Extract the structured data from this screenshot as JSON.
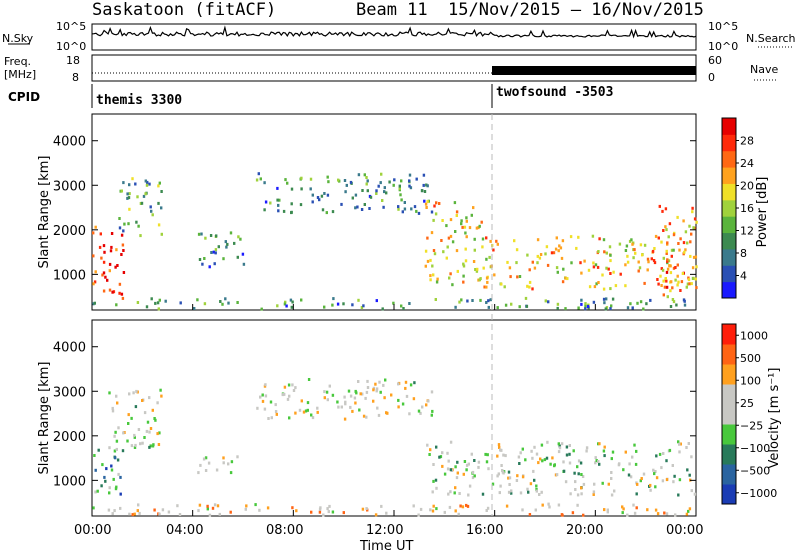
{
  "header": {
    "station": "Saskatoon (fitACF)",
    "beam": "Beam 11",
    "dates": "15/Nov/2015 – 16/Nov/2015"
  },
  "strip": {
    "nsky_label": "N.Sky",
    "nsky_ticks": [
      "10^5",
      "10^0"
    ],
    "nsearch_label": "N.Search",
    "freq_label_1": "Freq.",
    "freq_label_2": "[MHz]",
    "freq_ticks": [
      "18",
      "8"
    ],
    "nave_ticks": [
      "60",
      "0"
    ],
    "nave_label": "Nave",
    "cpid_label": "CPID",
    "cpid_segments": [
      {
        "name": "themis 3300",
        "start": 0
      },
      {
        "name": "twofsound -3503",
        "start": 16
      }
    ]
  },
  "time_axis": {
    "label": "Time UT",
    "ticks": [
      "00:00",
      "04:00",
      "08:00",
      "12:00",
      "16:00",
      "20:00",
      "00:00"
    ]
  },
  "chart_data": [
    {
      "type": "heatmap",
      "title": "Power",
      "xlabel": "Time UT",
      "ylabel": "Slant Range [km]",
      "xlim": [
        0,
        24
      ],
      "ylim": [
        200,
        4600
      ],
      "y_ticks": [
        1000,
        2000,
        3000,
        4000
      ],
      "colorbar_label": "Power [dB]",
      "colorbar_ticks": [
        4,
        8,
        12,
        16,
        20,
        24,
        28
      ],
      "colorbar_colors": [
        "#1a1aff",
        "#2a50b4",
        "#3a7a8c",
        "#3c8a50",
        "#5ab43c",
        "#a0d23c",
        "#f0e028",
        "#ffa21e",
        "#ff6814",
        "#ff2a0a",
        "#e60000"
      ],
      "regions": [
        {
          "t0": 0.0,
          "t1": 1.3,
          "r0": 400,
          "r1": 2100,
          "level": 0.85
        },
        {
          "t0": 1.0,
          "t1": 2.8,
          "r0": 1900,
          "r1": 3200,
          "level": 0.35
        },
        {
          "t0": 4.0,
          "t1": 6.0,
          "r0": 1200,
          "r1": 2000,
          "level": 0.25
        },
        {
          "t0": 6.5,
          "t1": 13.5,
          "r0": 2400,
          "r1": 3300,
          "level": 0.3
        },
        {
          "t0": 13.2,
          "t1": 15.5,
          "r0": 800,
          "r1": 2700,
          "level": 0.6
        },
        {
          "t0": 15.5,
          "t1": 24.0,
          "r0": 700,
          "r1": 1900,
          "level": 0.65
        },
        {
          "t0": 22.5,
          "t1": 24.0,
          "r0": 500,
          "r1": 2600,
          "level": 0.7
        },
        {
          "t0": 0.0,
          "t1": 24.0,
          "r0": 250,
          "r1": 500,
          "level": 0.3
        }
      ]
    },
    {
      "type": "heatmap",
      "title": "Velocity",
      "xlabel": "Time UT",
      "ylabel": "Slant Range [km]",
      "xlim": [
        0,
        24
      ],
      "ylim": [
        200,
        4600
      ],
      "y_ticks": [
        1000,
        2000,
        3000,
        4000
      ],
      "colorbar_label": "Velocity [m s⁻¹]",
      "colorbar_ticks": [
        "1000",
        "500",
        "100",
        "25",
        "−25",
        "−100",
        "−500",
        "−1000"
      ],
      "colorbar_colors": [
        "#1a3cb4",
        "#2a64a0",
        "#287a5a",
        "#48c83c",
        "#c8c8c4",
        "#c8c8c4",
        "#ffa01e",
        "#ff6414",
        "#ff1e0a"
      ],
      "regions": [
        {
          "t0": 0.0,
          "t1": 1.2,
          "r0": 500,
          "r1": 1800,
          "level": 0.3
        },
        {
          "t0": 0.6,
          "t1": 2.8,
          "r0": 1700,
          "r1": 3100,
          "level": 0.55
        },
        {
          "t0": 4.0,
          "t1": 6.0,
          "r0": 1200,
          "r1": 1600,
          "level": 0.5
        },
        {
          "t0": 6.5,
          "t1": 13.5,
          "r0": 2400,
          "r1": 3300,
          "level": 0.55
        },
        {
          "t0": 13.2,
          "t1": 24.0,
          "r0": 700,
          "r1": 1900,
          "level": 0.5
        },
        {
          "t0": 0.0,
          "t1": 24.0,
          "r0": 250,
          "r1": 500,
          "level": 0.65
        }
      ]
    }
  ]
}
